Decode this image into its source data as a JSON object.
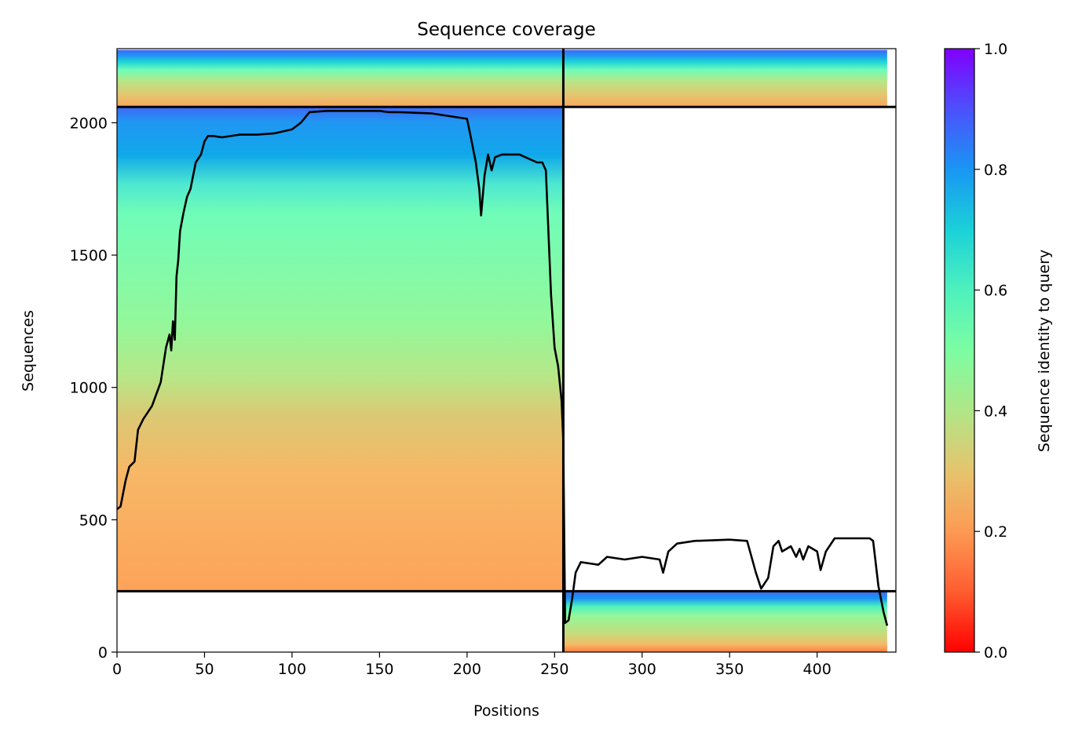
{
  "chart_data": {
    "type": "heatmap",
    "title": "Sequence coverage",
    "xlabel": "Positions",
    "ylabel": "Sequences",
    "xlim": [
      0,
      445
    ],
    "ylim": [
      0,
      2280
    ],
    "xticks": [
      0,
      50,
      100,
      150,
      200,
      250,
      300,
      350,
      400
    ],
    "yticks": [
      0,
      500,
      1000,
      1500,
      2000
    ],
    "colorbar": {
      "label": "Sequence identity to query",
      "range": [
        0,
        1
      ],
      "ticks": [
        "0.0",
        "0.2",
        "0.4",
        "0.6",
        "0.8",
        "1.0"
      ],
      "colormap": "rainbow_r"
    },
    "block_dividers": {
      "x": 255,
      "y": [
        230,
        2060
      ]
    },
    "blocks": [
      {
        "x_range": [
          0,
          255
        ],
        "y_range": [
          2060,
          2275
        ]
      },
      {
        "x_range": [
          255,
          440
        ],
        "y_range": [
          2060,
          2275
        ]
      },
      {
        "x_range": [
          0,
          255
        ],
        "y_range": [
          230,
          2060
        ]
      },
      {
        "x_range": [
          255,
          440
        ],
        "y_range": [
          0,
          230
        ]
      }
    ],
    "coverage_line": {
      "x": [
        0,
        2,
        5,
        7,
        10,
        12,
        15,
        20,
        25,
        28,
        30,
        31,
        32,
        33,
        34,
        35,
        36,
        38,
        40,
        42,
        45,
        48,
        50,
        52,
        55,
        60,
        70,
        80,
        90,
        100,
        105,
        110,
        120,
        150,
        155,
        160,
        180,
        190,
        200,
        202,
        205,
        207,
        208,
        210,
        212,
        214,
        216,
        220,
        230,
        240,
        243,
        245,
        248,
        250,
        252,
        254,
        255,
        256,
        258,
        260,
        262,
        265,
        270,
        275,
        280,
        290,
        300,
        310,
        312,
        315,
        320,
        330,
        350,
        360,
        365,
        368,
        370,
        372,
        375,
        378,
        380,
        385,
        388,
        390,
        392,
        395,
        400,
        402,
        405,
        410,
        420,
        430,
        432,
        435,
        438,
        440
      ],
      "y": [
        540,
        550,
        650,
        700,
        720,
        840,
        880,
        930,
        1020,
        1150,
        1200,
        1140,
        1250,
        1180,
        1420,
        1480,
        1590,
        1660,
        1720,
        1750,
        1850,
        1880,
        1930,
        1950,
        1950,
        1945,
        1955,
        1955,
        1960,
        1975,
        2000,
        2040,
        2045,
        2045,
        2040,
        2040,
        2035,
        2025,
        2015,
        1950,
        1850,
        1750,
        1650,
        1800,
        1880,
        1820,
        1870,
        1880,
        1880,
        1850,
        1850,
        1820,
        1350,
        1150,
        1080,
        950,
        800,
        110,
        120,
        200,
        300,
        340,
        335,
        330,
        360,
        350,
        360,
        350,
        300,
        380,
        410,
        420,
        425,
        420,
        300,
        240,
        260,
        280,
        400,
        420,
        380,
        400,
        360,
        390,
        350,
        400,
        380,
        310,
        380,
        430,
        430,
        430,
        420,
        250,
        150,
        100
      ]
    }
  }
}
